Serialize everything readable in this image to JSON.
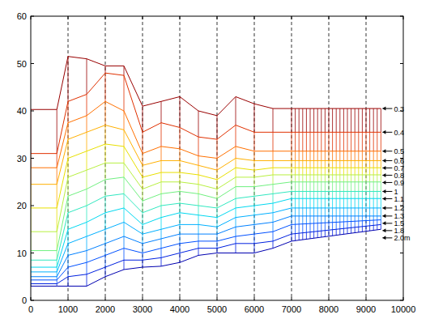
{
  "chart_data": {
    "type": "line",
    "x": [
      0,
      700,
      1000,
      1500,
      2000,
      2500,
      3000,
      3500,
      4000,
      4500,
      5000,
      5500,
      6000,
      6500,
      7000,
      9400
    ],
    "series": [
      {
        "name": "0.3",
        "color": "#990000",
        "values": [
          40.3,
          40.3,
          51.5,
          51,
          49.5,
          49.5,
          41,
          42,
          43,
          40,
          39,
          43,
          41.5,
          40.5,
          40.5,
          40.5
        ]
      },
      {
        "name": "0.4",
        "color": "#e03000",
        "values": [
          31,
          31,
          42,
          43.5,
          48,
          47.5,
          35.5,
          37.5,
          36.5,
          34.5,
          34,
          37,
          35.5,
          35.5,
          35.5,
          35.5
        ]
      },
      {
        "name": "0.5",
        "color": "#ff7000",
        "values": [
          28,
          28,
          37.5,
          39,
          42,
          40,
          31,
          32.5,
          32,
          30.5,
          30,
          32.5,
          31.5,
          31.5,
          31.5,
          31.5
        ]
      },
      {
        "name": "0.6",
        "color": "#ffb000",
        "values": [
          24.5,
          24.5,
          34,
          35.5,
          37,
          36,
          28.5,
          29.5,
          29.5,
          28.5,
          27.5,
          30,
          29.5,
          29.5,
          29.5,
          29.5
        ]
      },
      {
        "name": "0.7",
        "color": "#e8e000",
        "values": [
          19.5,
          19.5,
          30,
          31.5,
          33,
          32.5,
          26,
          27,
          27,
          26.5,
          25.5,
          28,
          27.5,
          28,
          28,
          28
        ]
      },
      {
        "name": "0.8",
        "color": "#b8f040",
        "values": [
          14.5,
          14.5,
          26,
          27.5,
          29,
          29,
          23.5,
          25,
          25,
          24.5,
          23.5,
          26,
          26,
          26.5,
          26.5,
          26.5
        ]
      },
      {
        "name": "0.9",
        "color": "#70f080",
        "values": [
          10.5,
          10.5,
          22,
          23.5,
          25.5,
          26,
          21,
          22.5,
          23,
          22.5,
          21.5,
          24,
          24,
          24.5,
          25,
          25
        ]
      },
      {
        "name": "1",
        "color": "#30e8c0",
        "values": [
          8.5,
          8.5,
          18.5,
          20,
          22,
          22.5,
          18.5,
          20,
          20.5,
          20,
          19.5,
          21.5,
          22,
          22.5,
          23,
          23
        ]
      },
      {
        "name": "1.1",
        "color": "#00d8f0",
        "values": [
          7,
          7,
          15,
          16.5,
          18.5,
          19.5,
          16,
          17.5,
          18.5,
          18,
          17.5,
          19.5,
          20,
          20.5,
          21.5,
          21.5
        ]
      },
      {
        "name": "1.2",
        "color": "#00b0ff",
        "values": [
          6,
          6,
          12,
          13.5,
          15,
          16.5,
          14,
          15,
          16,
          16,
          15.5,
          17.5,
          18,
          18.5,
          19.5,
          19.5
        ]
      },
      {
        "name": "1.3",
        "color": "#0080ff",
        "values": [
          5,
          5,
          9.5,
          10.5,
          12,
          13.5,
          12,
          13,
          14,
          14,
          14,
          15.5,
          16,
          16.5,
          17.8,
          17.8
        ]
      },
      {
        "name": "1.5",
        "color": "#0050ff",
        "values": [
          4.3,
          4.3,
          7,
          8,
          9.5,
          11,
          10,
          11,
          12,
          12.5,
          12.5,
          13.5,
          14,
          14.5,
          16,
          17
        ]
      },
      {
        "name": "1.8",
        "color": "#0020e0",
        "values": [
          3.5,
          3.5,
          5,
          5.5,
          7,
          8.5,
          8.5,
          9,
          10,
          11,
          11,
          12,
          12,
          12.5,
          14,
          16
        ]
      },
      {
        "name": "2.0m",
        "color": "#0000b0",
        "values": [
          3,
          3,
          3,
          3,
          5,
          6.5,
          7,
          7.2,
          8,
          9.5,
          10,
          10,
          10,
          11,
          12.5,
          15
        ]
      }
    ],
    "xlim": [
      0,
      10000
    ],
    "ylim": [
      0,
      60
    ],
    "xticks": [
      0,
      1000,
      2000,
      3000,
      4000,
      5000,
      6000,
      7000,
      8000,
      9000,
      10000
    ],
    "yticks": [
      0,
      10,
      20,
      30,
      40,
      50,
      60
    ],
    "grid": "x"
  }
}
